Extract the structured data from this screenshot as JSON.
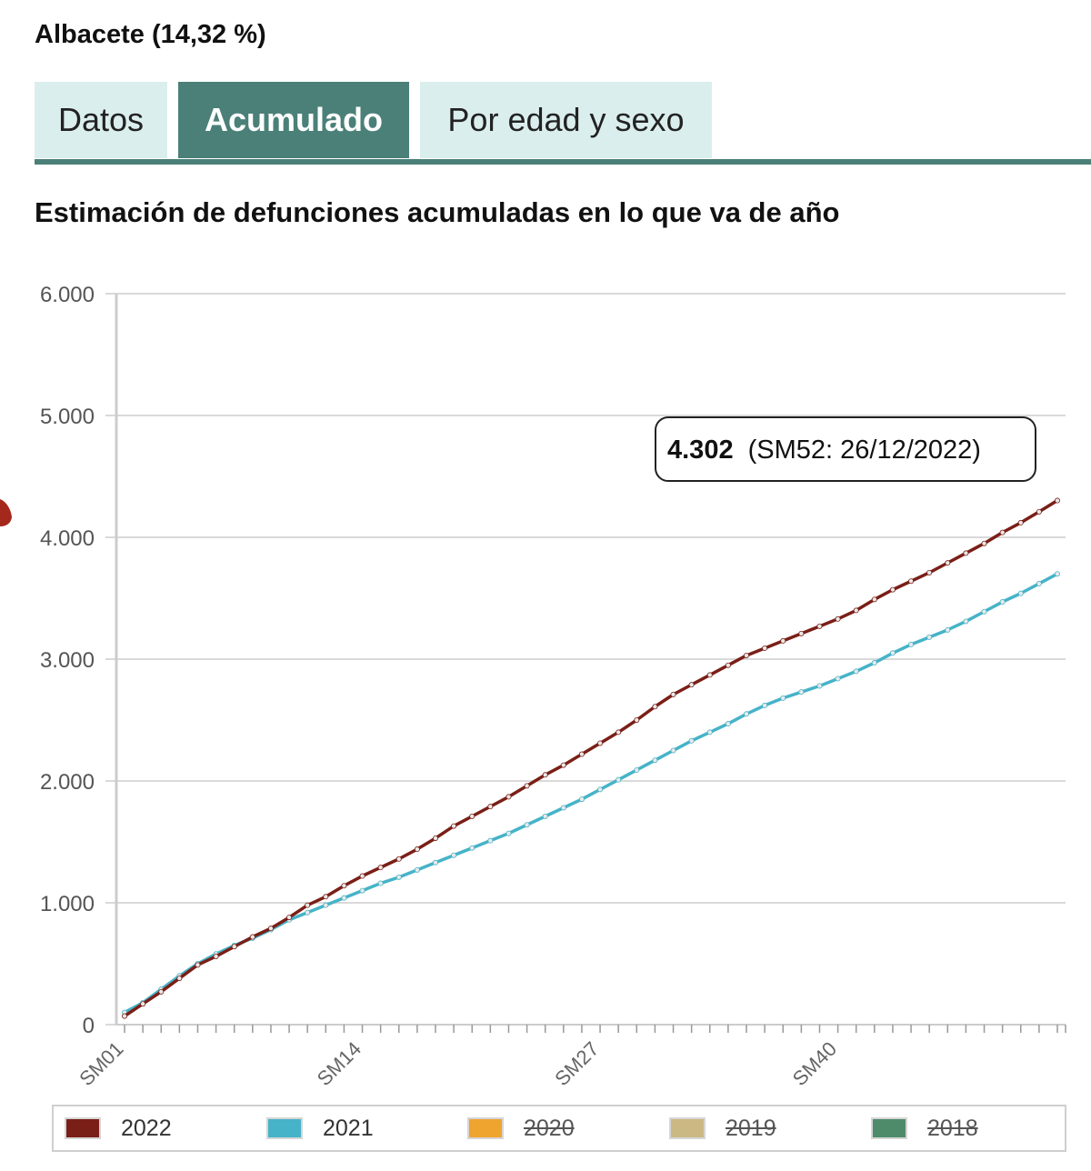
{
  "region_title": "Albacete (14,32 %)",
  "tabs": [
    {
      "label": "Datos",
      "active": false
    },
    {
      "label": "Acumulado",
      "active": true
    },
    {
      "label": "Por edad y sexo",
      "active": false
    }
  ],
  "colors": {
    "tab_active": "#4b8078",
    "tab_inactive": "#dbeeee",
    "series_2022": "#7a1f17",
    "series_2021": "#46b3c8",
    "series_2020": "#f0a430",
    "series_2019": "#cbb984",
    "series_2018": "#4e8b6b",
    "grid": "#d9d9d9"
  },
  "chart_data": {
    "type": "line",
    "title": "Estimación de defunciones acumuladas en lo que va de año",
    "xlabel": "",
    "ylabel": "",
    "ylim": [
      0,
      6000
    ],
    "y_ticks": [
      "0",
      "1.000",
      "2.000",
      "3.000",
      "4.000",
      "5.000",
      "6.000"
    ],
    "x_tick_labels": [
      "SM01",
      "SM14",
      "SM27",
      "SM40"
    ],
    "x": [
      "SM01",
      "SM02",
      "SM03",
      "SM04",
      "SM05",
      "SM06",
      "SM07",
      "SM08",
      "SM09",
      "SM10",
      "SM11",
      "SM12",
      "SM13",
      "SM14",
      "SM15",
      "SM16",
      "SM17",
      "SM18",
      "SM19",
      "SM20",
      "SM21",
      "SM22",
      "SM23",
      "SM24",
      "SM25",
      "SM26",
      "SM27",
      "SM28",
      "SM29",
      "SM30",
      "SM31",
      "SM32",
      "SM33",
      "SM34",
      "SM35",
      "SM36",
      "SM37",
      "SM38",
      "SM39",
      "SM40",
      "SM41",
      "SM42",
      "SM43",
      "SM44",
      "SM45",
      "SM46",
      "SM47",
      "SM48",
      "SM49",
      "SM50",
      "SM51",
      "SM52"
    ],
    "grid": true,
    "legend_position": "bottom",
    "tooltip": {
      "value": "4.302",
      "text": "(SM52: 26/12/2022)"
    },
    "series": [
      {
        "name": "2022",
        "visible": true,
        "values": [
          70,
          170,
          270,
          380,
          490,
          560,
          640,
          720,
          790,
          880,
          980,
          1050,
          1140,
          1220,
          1290,
          1360,
          1440,
          1530,
          1630,
          1710,
          1790,
          1870,
          1960,
          2050,
          2130,
          2220,
          2310,
          2400,
          2500,
          2610,
          2710,
          2790,
          2870,
          2950,
          3030,
          3090,
          3150,
          3210,
          3270,
          3330,
          3400,
          3490,
          3570,
          3640,
          3710,
          3790,
          3870,
          3950,
          4040,
          4120,
          4210,
          4302
        ]
      },
      {
        "name": "2021",
        "visible": true,
        "values": [
          100,
          180,
          290,
          400,
          500,
          580,
          650,
          710,
          780,
          860,
          920,
          980,
          1040,
          1100,
          1160,
          1210,
          1270,
          1330,
          1390,
          1450,
          1510,
          1570,
          1640,
          1710,
          1780,
          1850,
          1930,
          2010,
          2090,
          2170,
          2250,
          2330,
          2400,
          2470,
          2550,
          2620,
          2680,
          2730,
          2780,
          2840,
          2900,
          2970,
          3050,
          3120,
          3180,
          3240,
          3310,
          3390,
          3470,
          3540,
          3620,
          3700
        ]
      },
      {
        "name": "2020",
        "visible": false
      },
      {
        "name": "2019",
        "visible": false
      },
      {
        "name": "2018",
        "visible": false
      }
    ]
  }
}
